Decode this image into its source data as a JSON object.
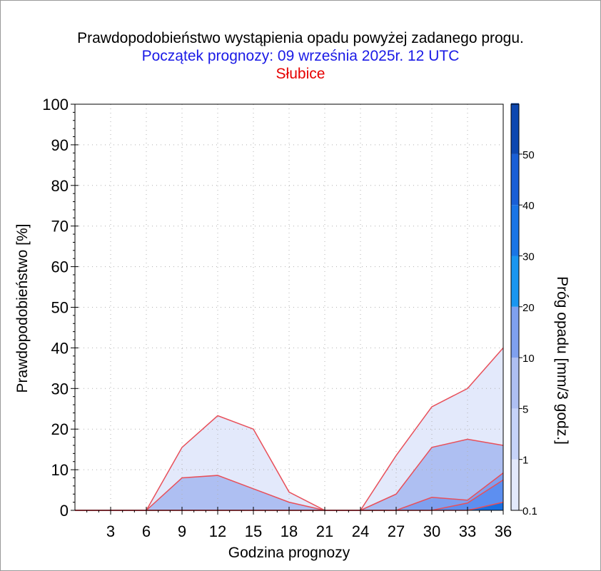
{
  "header": {
    "title": "Prawdopodobieństwo wystąpienia opadu powyżej zadanego progu.",
    "subtitle": "Początek prognozy: 09 września 2025r. 12 UTC",
    "station": "Słubice"
  },
  "chart_data": {
    "type": "area",
    "title": "Prawdopodobieństwo wystąpienia opadu powyżej zadanego progu.",
    "xlabel": "Godzina prognozy",
    "ylabel": "Prawdopodobieństwo [%]",
    "x": [
      0,
      3,
      6,
      9,
      12,
      15,
      18,
      21,
      24,
      27,
      30,
      33,
      36
    ],
    "xticks": [
      "3",
      "6",
      "9",
      "12",
      "15",
      "18",
      "21",
      "24",
      "27",
      "30",
      "33",
      "36"
    ],
    "xlim": [
      0,
      36
    ],
    "ylim": [
      0,
      100
    ],
    "yticks": [
      "0",
      "10",
      "20",
      "30",
      "40",
      "50",
      "60",
      "70",
      "80",
      "90",
      "100"
    ],
    "grid": true,
    "series": [
      {
        "threshold": 0.1,
        "color": "#e3e9fb",
        "values": [
          0,
          0,
          0,
          15.5,
          23.3,
          20,
          4.5,
          0,
          0,
          13.5,
          25.5,
          30,
          40
        ]
      },
      {
        "threshold": 1,
        "color": "#aebff2",
        "values": [
          0,
          0,
          0,
          8,
          8.6,
          5.3,
          2,
          0,
          0,
          4,
          15.5,
          17.5,
          16
        ]
      },
      {
        "threshold": 5,
        "color": "#7fa0ef",
        "values": [
          0,
          0,
          0,
          0,
          0,
          0,
          0,
          0,
          0,
          0,
          3.2,
          2.5,
          9.2
        ]
      },
      {
        "threshold": 10,
        "color": "#5d8ff0",
        "values": [
          0,
          0,
          0,
          0,
          0,
          0,
          0,
          0,
          0,
          0,
          0,
          1.8,
          7.5
        ]
      },
      {
        "threshold": 20,
        "color": "#1a6fe0",
        "values": [
          0,
          0,
          0,
          0,
          0,
          0,
          0,
          0,
          0,
          0,
          0,
          0,
          2
        ]
      }
    ],
    "colorbar": {
      "label": "Próg opadu [mm/3 godz.]",
      "ticks": [
        "0.1",
        "1",
        "5",
        "10",
        "20",
        "30",
        "40",
        "50"
      ],
      "colors": [
        "#e3e9fb",
        "#c6d3f8",
        "#aebff2",
        "#7fa0ef",
        "#1a96f0",
        "#1a75e6",
        "#1a5fd6",
        "#0d47b0"
      ],
      "top_color": "#0a3c9c"
    },
    "line_color": "#e8505a"
  }
}
